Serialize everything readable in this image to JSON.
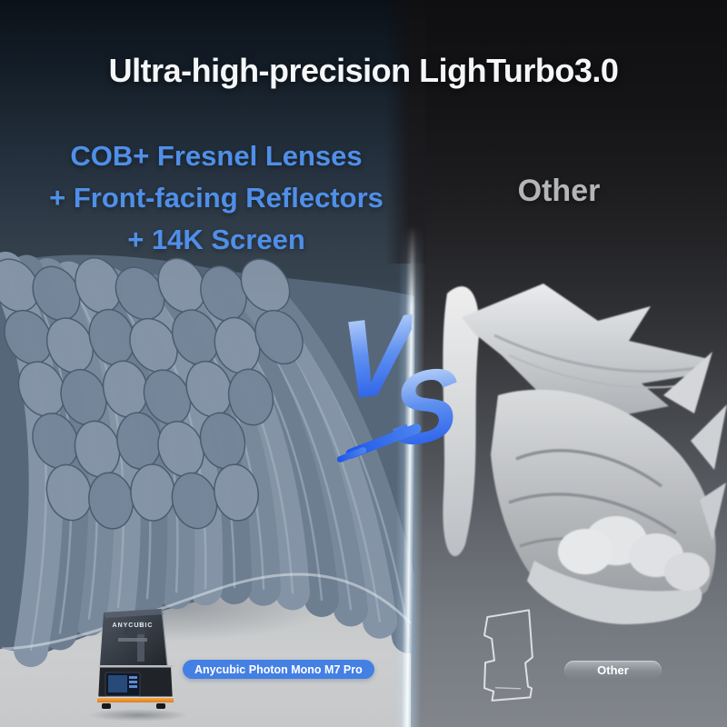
{
  "page": {
    "title": "Ultra-high-precision LighTurbo3.0"
  },
  "left_panel": {
    "features": [
      "COB+ Fresnel Lenses",
      "+ Front-facing Reflectors",
      "+ 14K Screen"
    ],
    "printer_brand_label": "ANYCUBIC",
    "product_badge_label": "Anycubic Photon Mono M7 Pro",
    "image_subject": "high-detail feathered wing 3D print"
  },
  "right_panel": {
    "heading": "Other",
    "badge_label": "Other",
    "image_subject": "low-detail axe gauntlet 3D print"
  },
  "versus": {
    "v": "V",
    "s": "S"
  },
  "colors": {
    "feature_blue": "#4F8FE9",
    "badge_blue": "#4480E4",
    "title_white": "#F4F6F8",
    "other_gray": "#B4B5B7",
    "vs_gradient_top": "#CFE2FA",
    "vs_gradient_mid": "#5E8FF0",
    "vs_gradient_bottom": "#1E55E8",
    "divider_glow": "#F8FDFF",
    "left_bg_top": "#0B1118",
    "right_bg_top": "#0F0F12",
    "left_bg_bottom": "#C6C8CA",
    "right_bg_bottom": "#82868C"
  }
}
